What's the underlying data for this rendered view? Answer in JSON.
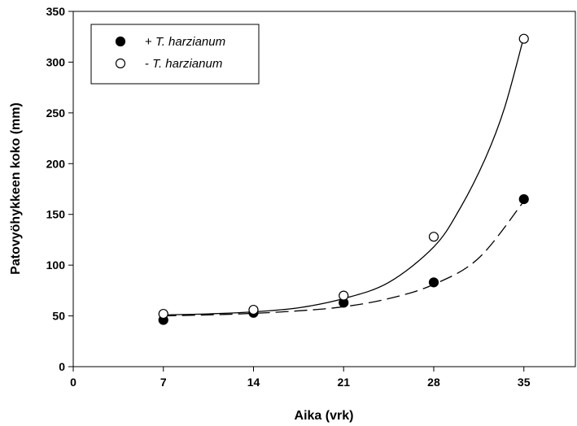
{
  "chart_data": {
    "type": "scatter",
    "xlabel": "Aika (vrk)",
    "ylabel": "Patovyöhykkeen koko (mm)",
    "xlim": [
      0,
      39
    ],
    "ylim": [
      0,
      350
    ],
    "x_ticks": [
      0,
      7,
      14,
      21,
      28,
      35
    ],
    "y_ticks": [
      0,
      50,
      100,
      150,
      200,
      250,
      300,
      350
    ],
    "legend_position": "top-left",
    "grid": false,
    "series": [
      {
        "name": "+ T. harzianum",
        "marker": "filled-circle",
        "line_style": "dashed",
        "x": [
          7,
          14,
          21,
          28,
          35
        ],
        "y": [
          46,
          53,
          63,
          83,
          165
        ],
        "fit_curve": [
          [
            7,
            50
          ],
          [
            10.5,
            51
          ],
          [
            14,
            52.5
          ],
          [
            17.5,
            55
          ],
          [
            21,
            59
          ],
          [
            24.5,
            67
          ],
          [
            28,
            81
          ],
          [
            31.5,
            107
          ],
          [
            35,
            163
          ]
        ]
      },
      {
        "name": "- T. harzianum",
        "marker": "open-circle",
        "line_style": "solid",
        "x": [
          7,
          14,
          21,
          28,
          35
        ],
        "y": [
          52,
          56,
          70,
          128,
          323
        ],
        "fit_curve": [
          [
            7,
            51
          ],
          [
            10.5,
            52
          ],
          [
            14,
            54
          ],
          [
            17.5,
            58
          ],
          [
            21,
            67
          ],
          [
            24.5,
            83
          ],
          [
            28,
            118
          ],
          [
            30,
            155
          ],
          [
            32,
            205
          ],
          [
            33.5,
            255
          ],
          [
            35,
            325
          ]
        ]
      }
    ]
  },
  "legend": {
    "items": [
      {
        "prefix": "+ ",
        "label": "T. harzianum"
      },
      {
        "prefix": "- ",
        "label": "T. harzianum"
      }
    ]
  }
}
